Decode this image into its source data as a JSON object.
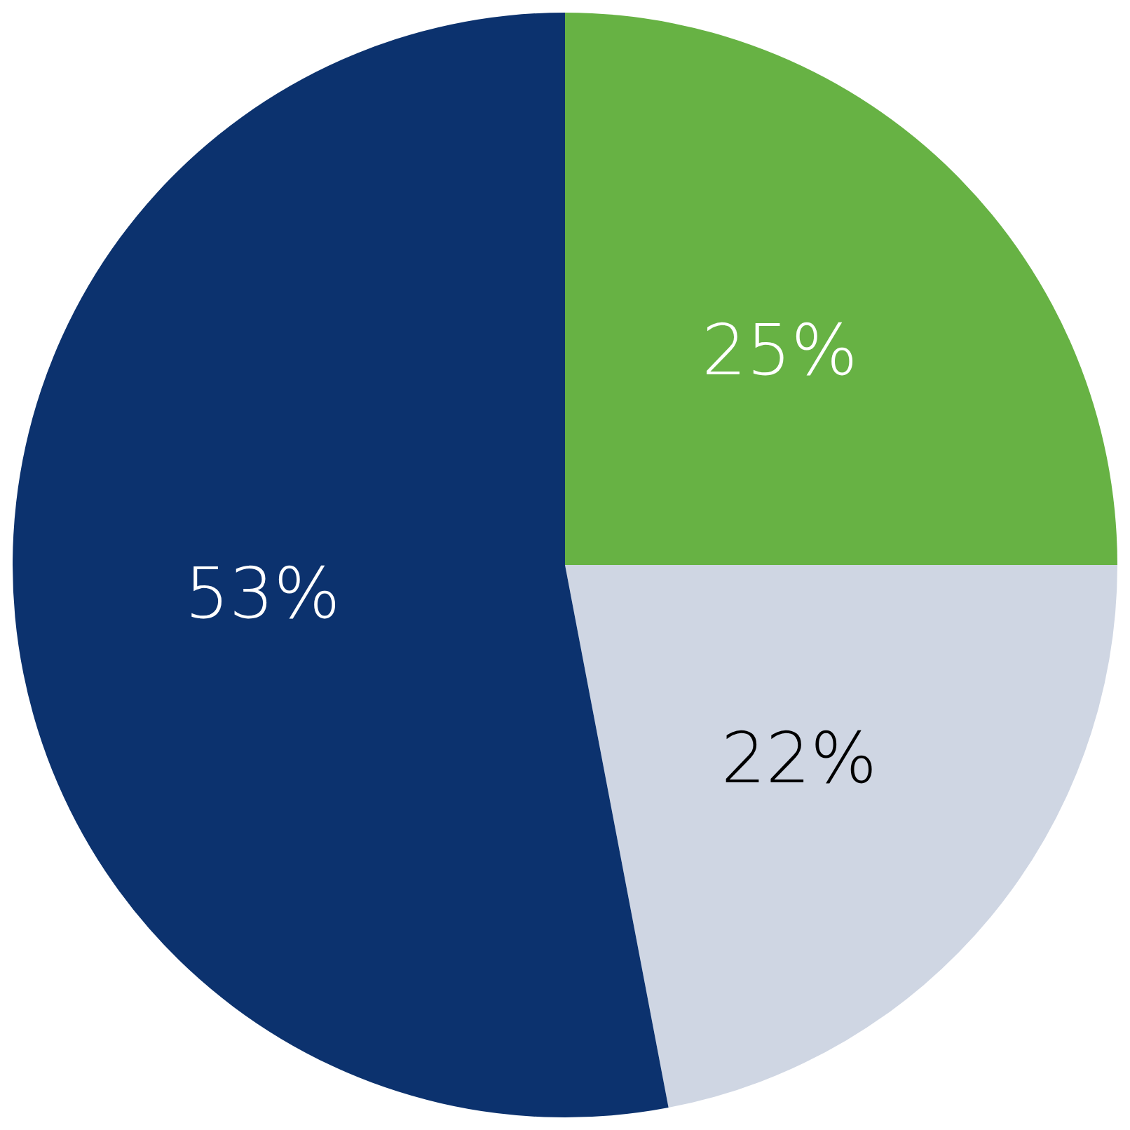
{
  "chart_data": {
    "type": "pie",
    "categories": [
      null,
      null,
      null
    ],
    "values": [
      25,
      22,
      53
    ],
    "colors": [
      "#67b244",
      "#cfd6e3",
      "#0c326e"
    ],
    "value_labels": [
      "25%",
      "22%",
      "53%"
    ],
    "legend": false
  }
}
